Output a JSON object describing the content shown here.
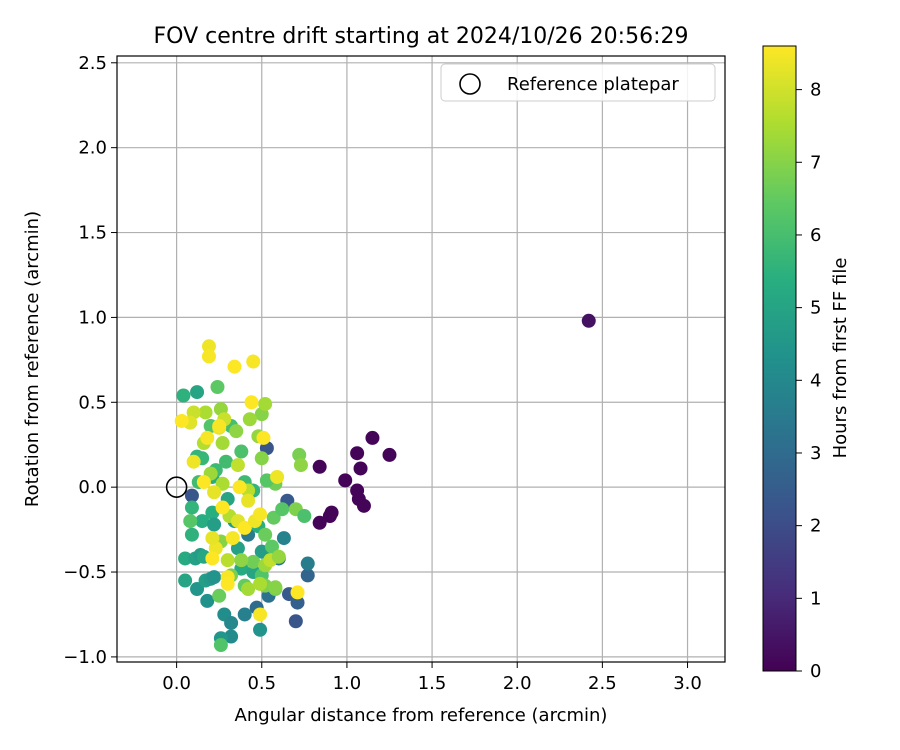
{
  "chart_data": {
    "type": "scatter",
    "title": "FOV centre drift starting at 2024/10/26 20:56:29",
    "xlabel": "Angular distance from reference (arcmin)",
    "ylabel": "Rotation from reference (arcmin)",
    "xlim": [
      -0.35,
      3.22
    ],
    "ylim": [
      -1.03,
      2.54
    ],
    "xticks": [
      "0.0",
      "0.5",
      "1.0",
      "1.5",
      "2.0",
      "2.5",
      "3.0"
    ],
    "yticks": [
      "−1.0",
      "−0.5",
      "0.0",
      "0.5",
      "1.0",
      "1.5",
      "2.0",
      "2.5"
    ],
    "grid": true,
    "legend": {
      "position": "top-right",
      "entries": [
        "Reference platepar"
      ]
    },
    "colorbar": {
      "label": "Hours from first FF file",
      "range": [
        0,
        8.6
      ],
      "ticks": [
        "0",
        "1",
        "2",
        "3",
        "4",
        "5",
        "6",
        "7",
        "8"
      ],
      "colormap": "viridis"
    },
    "reference_point": {
      "x": 0.0,
      "y": 0.0
    },
    "points": [
      {
        "x": 2.42,
        "y": 0.98,
        "h": 0.4
      },
      {
        "x": 0.84,
        "y": 0.12,
        "h": 0.1
      },
      {
        "x": 0.84,
        "y": -0.21,
        "h": 0.1
      },
      {
        "x": 0.9,
        "y": -0.17,
        "h": 0.1
      },
      {
        "x": 0.91,
        "y": -0.15,
        "h": 0.1
      },
      {
        "x": 0.99,
        "y": 0.04,
        "h": 0.1
      },
      {
        "x": 1.06,
        "y": 0.2,
        "h": 0.1
      },
      {
        "x": 1.06,
        "y": -0.02,
        "h": 0.1
      },
      {
        "x": 1.07,
        "y": -0.07,
        "h": 0.1
      },
      {
        "x": 1.08,
        "y": 0.11,
        "h": 0.1
      },
      {
        "x": 1.1,
        "y": -0.11,
        "h": 0.1
      },
      {
        "x": 1.15,
        "y": 0.29,
        "h": 0.1
      },
      {
        "x": 1.25,
        "y": 0.19,
        "h": 0.1
      },
      {
        "x": 0.09,
        "y": -0.05,
        "h": 2.3
      },
      {
        "x": 0.53,
        "y": 0.23,
        "h": 2.3
      },
      {
        "x": 0.65,
        "y": -0.08,
        "h": 2.4
      },
      {
        "x": 0.66,
        "y": -0.63,
        "h": 2.4
      },
      {
        "x": 0.7,
        "y": -0.79,
        "h": 2.3
      },
      {
        "x": 0.71,
        "y": -0.68,
        "h": 2.6
      },
      {
        "x": 0.77,
        "y": -0.52,
        "h": 2.8
      },
      {
        "x": 0.54,
        "y": -0.64,
        "h": 3.2
      },
      {
        "x": 0.47,
        "y": -0.71,
        "h": 3.0
      },
      {
        "x": 0.6,
        "y": -0.42,
        "h": 3.3
      },
      {
        "x": 0.77,
        "y": -0.45,
        "h": 3.6
      },
      {
        "x": 0.63,
        "y": -0.3,
        "h": 3.8
      },
      {
        "x": 0.56,
        "y": -0.4,
        "h": 3.4
      },
      {
        "x": 0.42,
        "y": -0.28,
        "h": 3.5
      },
      {
        "x": 0.4,
        "y": -0.75,
        "h": 3.7
      },
      {
        "x": 0.28,
        "y": -0.75,
        "h": 4.2
      },
      {
        "x": 0.32,
        "y": -0.8,
        "h": 4.0
      },
      {
        "x": 0.32,
        "y": -0.88,
        "h": 4.1
      },
      {
        "x": 0.26,
        "y": -0.89,
        "h": 4.5
      },
      {
        "x": 0.49,
        "y": -0.84,
        "h": 4.4
      },
      {
        "x": 0.18,
        "y": -0.67,
        "h": 4.3
      },
      {
        "x": 0.12,
        "y": -0.6,
        "h": 4.5
      },
      {
        "x": 0.17,
        "y": -0.55,
        "h": 4.8
      },
      {
        "x": 0.2,
        "y": -0.54,
        "h": 4.6
      },
      {
        "x": 0.22,
        "y": -0.53,
        "h": 4.4
      },
      {
        "x": 0.05,
        "y": -0.55,
        "h": 5.0
      },
      {
        "x": 0.05,
        "y": -0.42,
        "h": 5.2
      },
      {
        "x": 0.11,
        "y": -0.42,
        "h": 4.9
      },
      {
        "x": 0.14,
        "y": -0.4,
        "h": 4.7
      },
      {
        "x": 0.16,
        "y": -0.41,
        "h": 5.1
      },
      {
        "x": 0.09,
        "y": -0.28,
        "h": 5.5
      },
      {
        "x": 0.09,
        "y": -0.12,
        "h": 5.6
      },
      {
        "x": 0.15,
        "y": -0.2,
        "h": 5.3
      },
      {
        "x": 0.21,
        "y": -0.15,
        "h": 5.4
      },
      {
        "x": 0.22,
        "y": -0.22,
        "h": 4.8
      },
      {
        "x": 0.3,
        "y": -0.07,
        "h": 5.0
      },
      {
        "x": 0.34,
        "y": -0.2,
        "h": 4.6
      },
      {
        "x": 0.36,
        "y": -0.36,
        "h": 4.9
      },
      {
        "x": 0.38,
        "y": -0.48,
        "h": 5.2
      },
      {
        "x": 0.45,
        "y": -0.5,
        "h": 5.0
      },
      {
        "x": 0.5,
        "y": -0.38,
        "h": 4.7
      },
      {
        "x": 0.48,
        "y": -0.23,
        "h": 5.4
      },
      {
        "x": 0.45,
        "y": -0.02,
        "h": 5.6
      },
      {
        "x": 0.4,
        "y": 0.03,
        "h": 5.8
      },
      {
        "x": 0.04,
        "y": 0.54,
        "h": 5.5
      },
      {
        "x": 0.12,
        "y": 0.56,
        "h": 5.0
      },
      {
        "x": 0.12,
        "y": 0.18,
        "h": 5.6
      },
      {
        "x": 0.15,
        "y": 0.17,
        "h": 5.7
      },
      {
        "x": 0.13,
        "y": 0.03,
        "h": 5.9
      },
      {
        "x": 0.21,
        "y": 0.06,
        "h": 5.3
      },
      {
        "x": 0.23,
        "y": 0.1,
        "h": 5.8
      },
      {
        "x": 0.29,
        "y": 0.15,
        "h": 5.9
      },
      {
        "x": 0.32,
        "y": 0.36,
        "h": 6.0
      },
      {
        "x": 0.38,
        "y": 0.21,
        "h": 6.1
      },
      {
        "x": 0.2,
        "y": 0.36,
        "h": 6.2
      },
      {
        "x": 0.24,
        "y": 0.59,
        "h": 6.4
      },
      {
        "x": 0.08,
        "y": -0.2,
        "h": 6.3
      },
      {
        "x": 0.25,
        "y": -0.64,
        "h": 6.6
      },
      {
        "x": 0.26,
        "y": -0.93,
        "h": 6.2
      },
      {
        "x": 0.32,
        "y": -0.52,
        "h": 6.8
      },
      {
        "x": 0.4,
        "y": -0.58,
        "h": 6.5
      },
      {
        "x": 0.45,
        "y": -0.44,
        "h": 6.7
      },
      {
        "x": 0.5,
        "y": -0.52,
        "h": 6.2
      },
      {
        "x": 0.52,
        "y": -0.58,
        "h": 6.9
      },
      {
        "x": 0.58,
        "y": -0.6,
        "h": 6.8
      },
      {
        "x": 0.56,
        "y": -0.35,
        "h": 6.4
      },
      {
        "x": 0.52,
        "y": -0.28,
        "h": 6.6
      },
      {
        "x": 0.57,
        "y": -0.18,
        "h": 6.5
      },
      {
        "x": 0.62,
        "y": -0.13,
        "h": 6.3
      },
      {
        "x": 0.7,
        "y": -0.13,
        "h": 6.9
      },
      {
        "x": 0.75,
        "y": -0.17,
        "h": 6.1
      },
      {
        "x": 0.72,
        "y": 0.19,
        "h": 6.8
      },
      {
        "x": 0.73,
        "y": 0.13,
        "h": 7.1
      },
      {
        "x": 0.58,
        "y": 0.02,
        "h": 6.7
      },
      {
        "x": 0.53,
        "y": 0.04,
        "h": 6.3
      },
      {
        "x": 0.5,
        "y": 0.17,
        "h": 7.0
      },
      {
        "x": 0.48,
        "y": 0.3,
        "h": 7.2
      },
      {
        "x": 0.5,
        "y": 0.43,
        "h": 7.0
      },
      {
        "x": 0.52,
        "y": 0.49,
        "h": 7.4
      },
      {
        "x": 0.43,
        "y": 0.4,
        "h": 7.3
      },
      {
        "x": 0.35,
        "y": 0.33,
        "h": 7.1
      },
      {
        "x": 0.27,
        "y": 0.26,
        "h": 7.4
      },
      {
        "x": 0.26,
        "y": 0.46,
        "h": 7.2
      },
      {
        "x": 0.16,
        "y": 0.26,
        "h": 7.6
      },
      {
        "x": 0.2,
        "y": 0.08,
        "h": 7.3
      },
      {
        "x": 0.27,
        "y": 0.02,
        "h": 7.5
      },
      {
        "x": 0.31,
        "y": -0.17,
        "h": 7.6
      },
      {
        "x": 0.26,
        "y": -0.32,
        "h": 7.0
      },
      {
        "x": 0.3,
        "y": -0.43,
        "h": 7.7
      },
      {
        "x": 0.38,
        "y": -0.43,
        "h": 7.1
      },
      {
        "x": 0.42,
        "y": -0.6,
        "h": 7.4
      },
      {
        "x": 0.49,
        "y": -0.57,
        "h": 7.5
      },
      {
        "x": 0.52,
        "y": -0.46,
        "h": 7.3
      },
      {
        "x": 0.55,
        "y": -0.43,
        "h": 7.8
      },
      {
        "x": 0.6,
        "y": -0.41,
        "h": 7.2
      },
      {
        "x": 0.58,
        "y": -0.59,
        "h": 7.0
      },
      {
        "x": 0.42,
        "y": -0.02,
        "h": 7.7
      },
      {
        "x": 0.36,
        "y": 0.13,
        "h": 7.8
      },
      {
        "x": 0.28,
        "y": 0.4,
        "h": 7.9
      },
      {
        "x": 0.17,
        "y": 0.44,
        "h": 7.5
      },
      {
        "x": 0.1,
        "y": 0.44,
        "h": 7.9
      },
      {
        "x": 0.08,
        "y": 0.38,
        "h": 8.2
      },
      {
        "x": 0.03,
        "y": 0.39,
        "h": 8.6
      },
      {
        "x": 0.19,
        "y": 0.83,
        "h": 8.4
      },
      {
        "x": 0.19,
        "y": 0.77,
        "h": 8.5
      },
      {
        "x": 0.34,
        "y": 0.71,
        "h": 8.6
      },
      {
        "x": 0.45,
        "y": 0.74,
        "h": 8.5
      },
      {
        "x": 0.44,
        "y": 0.5,
        "h": 8.6
      },
      {
        "x": 0.25,
        "y": 0.35,
        "h": 8.3
      },
      {
        "x": 0.18,
        "y": 0.29,
        "h": 8.5
      },
      {
        "x": 0.1,
        "y": 0.15,
        "h": 8.4
      },
      {
        "x": 0.16,
        "y": 0.03,
        "h": 8.6
      },
      {
        "x": 0.22,
        "y": -0.03,
        "h": 8.3
      },
      {
        "x": 0.27,
        "y": -0.12,
        "h": 8.6
      },
      {
        "x": 0.33,
        "y": -0.3,
        "h": 8.5
      },
      {
        "x": 0.36,
        "y": -0.2,
        "h": 8.2
      },
      {
        "x": 0.4,
        "y": -0.24,
        "h": 8.6
      },
      {
        "x": 0.46,
        "y": -0.2,
        "h": 8.4
      },
      {
        "x": 0.49,
        "y": -0.16,
        "h": 8.5
      },
      {
        "x": 0.42,
        "y": -0.08,
        "h": 8.3
      },
      {
        "x": 0.37,
        "y": 0.0,
        "h": 8.6
      },
      {
        "x": 0.3,
        "y": -0.53,
        "h": 8.5
      },
      {
        "x": 0.3,
        "y": -0.57,
        "h": 8.6
      },
      {
        "x": 0.23,
        "y": -0.36,
        "h": 8.4
      },
      {
        "x": 0.21,
        "y": -0.42,
        "h": 8.6
      },
      {
        "x": 0.49,
        "y": -0.75,
        "h": 8.5
      },
      {
        "x": 0.71,
        "y": -0.62,
        "h": 8.6
      },
      {
        "x": 0.59,
        "y": 0.06,
        "h": 8.4
      },
      {
        "x": 0.51,
        "y": 0.29,
        "h": 8.6
      },
      {
        "x": 0.25,
        "y": 0.36,
        "h": 8.5
      },
      {
        "x": 0.21,
        "y": -0.3,
        "h": 8.3
      }
    ]
  }
}
